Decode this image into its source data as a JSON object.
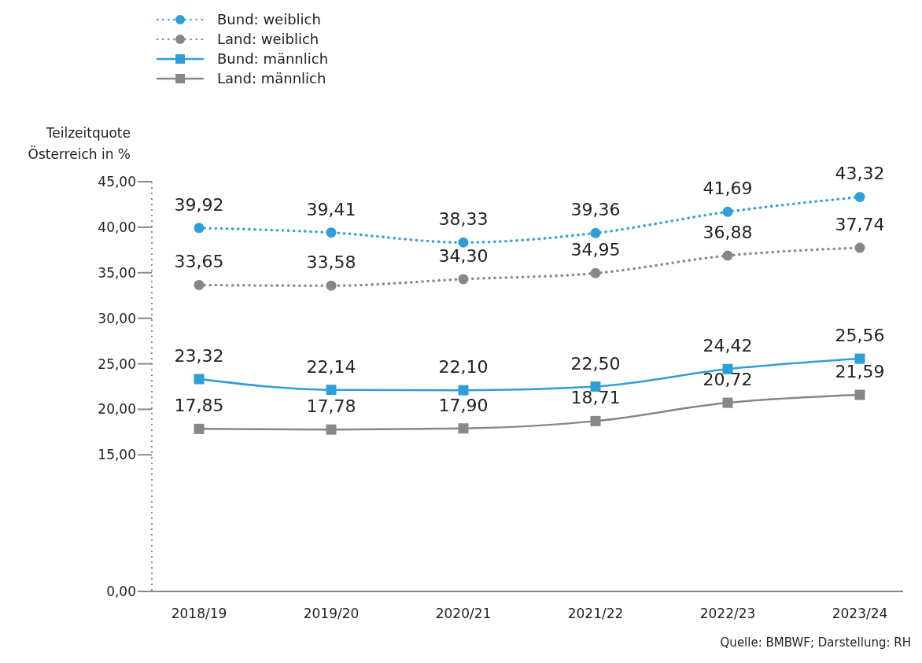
{
  "chart_data": {
    "type": "line",
    "ylabel": "Teilzeitquote\nÖsterreich in %",
    "categories": [
      "2018/19",
      "2019/20",
      "2020/21",
      "2021/22",
      "2022/23",
      "2023/24"
    ],
    "series": [
      {
        "name": "Bund: weiblich",
        "color": "#2e9fd6",
        "marker": "circle",
        "line_style": "dotted",
        "values": [
          39.92,
          39.41,
          38.33,
          39.36,
          41.69,
          43.32
        ],
        "value_labels": [
          "39,92",
          "39,41",
          "38,33",
          "39,36",
          "41,69",
          "43,32"
        ]
      },
      {
        "name": "Land: weiblich",
        "color": "#878787",
        "marker": "circle",
        "line_style": "dotted",
        "values": [
          33.65,
          33.58,
          34.3,
          34.95,
          36.88,
          37.74
        ],
        "value_labels": [
          "33,65",
          "33,58",
          "34,30",
          "34,95",
          "36,88",
          "37,74"
        ]
      },
      {
        "name": "Bund: männlich",
        "color": "#2e9fd6",
        "marker": "square",
        "line_style": "solid",
        "values": [
          23.32,
          22.14,
          22.1,
          22.5,
          24.42,
          25.56
        ],
        "value_labels": [
          "23,32",
          "22,14",
          "22,10",
          "22,50",
          "24,42",
          "25,56"
        ]
      },
      {
        "name": "Land: männlich",
        "color": "#878787",
        "marker": "square",
        "line_style": "solid",
        "values": [
          17.85,
          17.78,
          17.9,
          18.71,
          20.72,
          21.59
        ],
        "value_labels": [
          "17,85",
          "17,78",
          "17,90",
          "18,71",
          "20,72",
          "21,59"
        ]
      }
    ],
    "ylim": [
      0,
      45
    ],
    "yticks": [
      {
        "value": 0,
        "label": "0,00"
      },
      {
        "value": 15,
        "label": "15,00"
      },
      {
        "value": 20,
        "label": "20,00"
      },
      {
        "value": 25,
        "label": "25,00"
      },
      {
        "value": 30,
        "label": "30,00"
      },
      {
        "value": 35,
        "label": "35,00"
      },
      {
        "value": 40,
        "label": "40,00"
      },
      {
        "value": 45,
        "label": "45,00"
      }
    ],
    "grid": false,
    "legend": "top left",
    "annotations": [
      "Quelle: BMBWF; Darstellung: RH"
    ]
  }
}
